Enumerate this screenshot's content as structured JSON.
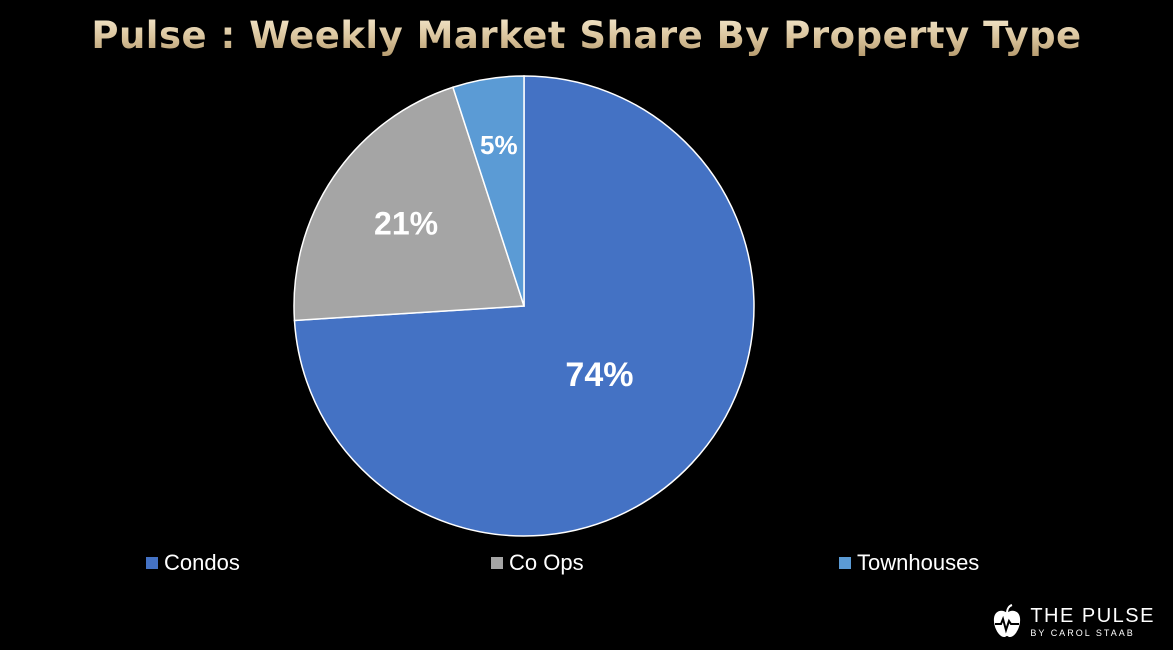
{
  "colors": {
    "background": "#000000",
    "title": "#e3d1ad",
    "condos": "#4472c4",
    "co_ops": "#a5a5a5",
    "townhouses": "#5b9bd5",
    "label_text": "#ffffff"
  },
  "chart_data": {
    "type": "pie",
    "title": "Pulse : Weekly Market Share By Property Type",
    "slices": [
      {
        "name": "Condos",
        "value": 74,
        "label": "74%",
        "color": "#4472c4"
      },
      {
        "name": "Co Ops",
        "value": 21,
        "label": "21%",
        "color": "#a5a5a5"
      },
      {
        "name": "Townhouses",
        "value": 5,
        "label": "5%",
        "color": "#5b9bd5"
      }
    ],
    "start": "12 o'clock",
    "direction": "clockwise",
    "legend_placement": "bottom"
  },
  "legend": {
    "items": [
      {
        "label": "Condos",
        "color": "#4472c4"
      },
      {
        "label": "Co Ops",
        "color": "#a5a5a5"
      },
      {
        "label": "Townhouses",
        "color": "#5b9bd5"
      }
    ]
  },
  "logo": {
    "name": "THE PULSE",
    "subtitle": "BY CAROL STAAB",
    "icon": "apple-heartbeat-icon"
  }
}
